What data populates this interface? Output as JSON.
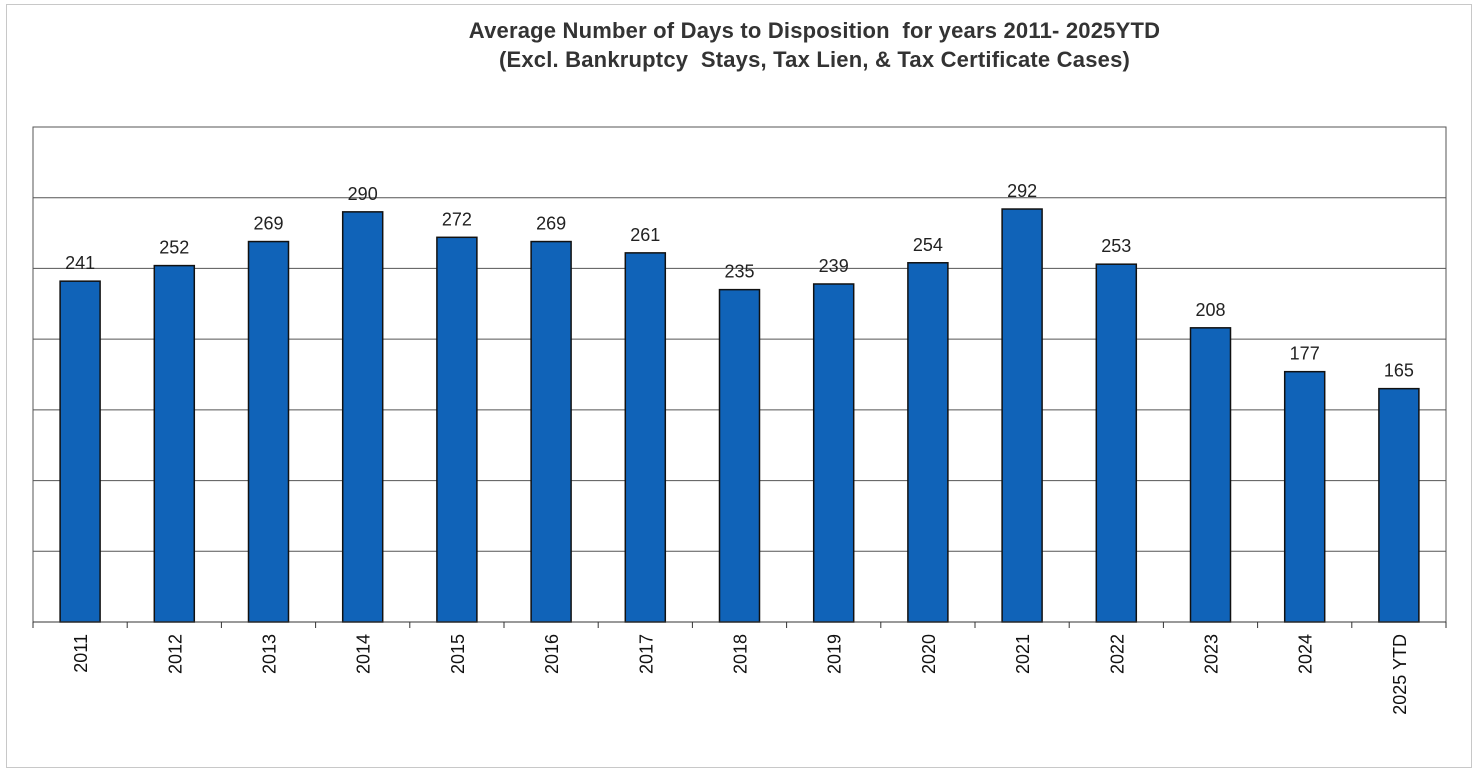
{
  "chart_data": {
    "type": "bar",
    "title": "Average Number of Days to Disposition  for years 2011- 2025YTD",
    "subtitle": "(Excl. Bankruptcy  Stays, Tax Lien, & Tax Certificate Cases)",
    "xlabel": "",
    "ylabel": "",
    "categories": [
      "2011",
      "2012",
      "2013",
      "2014",
      "2015",
      "2016",
      "2017",
      "2018",
      "2019",
      "2020",
      "2021",
      "2022",
      "2023",
      "2024",
      "2025 YTD"
    ],
    "values": [
      241,
      252,
      269,
      290,
      272,
      269,
      261,
      235,
      239,
      254,
      292,
      253,
      208,
      177,
      165
    ],
    "ylim": [
      0,
      350
    ],
    "y_gridline_step": 50,
    "y_tick_labels_shown": false,
    "grid": true,
    "data_labels": true,
    "legend": "none",
    "bar_color": "#1063b8",
    "bar_edge_color": "#111111"
  }
}
